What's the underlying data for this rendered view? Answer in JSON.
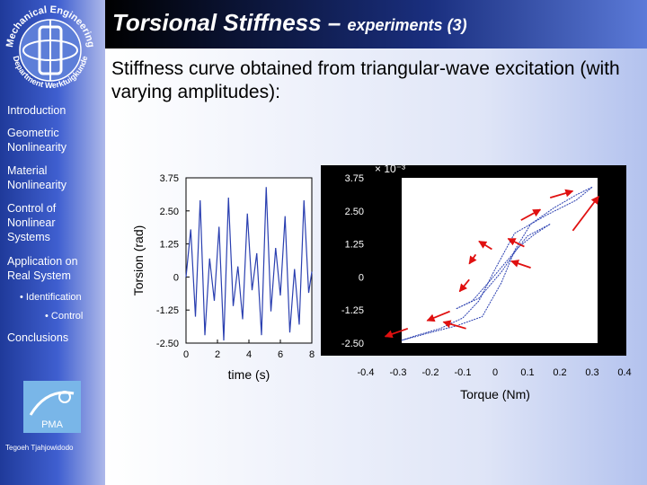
{
  "title": {
    "main": "Torsional Stiffness – ",
    "sub": "experiments (3)"
  },
  "heading": "Stiffness curve obtained from triangular-wave excitation (with varying amplitudes):",
  "logo": {
    "arc_top": "Mechanical Engineering",
    "arc_bottom": "Department Werktuigkunde"
  },
  "sidebar": {
    "items": [
      {
        "label": "Introduction"
      },
      {
        "label": "Geometric\nNonlinearity"
      },
      {
        "label": "Material\nNonlinearity"
      },
      {
        "label": "Control of\nNonlinear\nSystems"
      },
      {
        "label": "Application on\nReal System"
      },
      {
        "label": "• Identification"
      },
      {
        "label": "• Control"
      },
      {
        "label": "Conclusions"
      }
    ],
    "pma_label": "PMA",
    "author": "Tegoeh Tjahjowidodo"
  },
  "colors": {
    "sidebar": "#2f4fc0",
    "arrow": "#e01010",
    "trace": "#2a3fb0"
  },
  "chart_data": [
    {
      "type": "line",
      "xlabel": "time (s)",
      "ylabel": "Torsion (rad)",
      "xlim": [
        0,
        8
      ],
      "ylim": [
        -2.5,
        3.75
      ],
      "x_ticks": [
        "0",
        "2",
        "4",
        "6",
        "8"
      ],
      "y_ticks": [
        "3.75",
        "2.50",
        "1.25",
        "0",
        "-1.25",
        "-2.50"
      ],
      "scale_label": "× 10⁻³",
      "series": [
        {
          "x": [
            0,
            0.3,
            0.6,
            0.9,
            1.2,
            1.5,
            1.8,
            2.1,
            2.4,
            2.7,
            3.0,
            3.3,
            3.6,
            3.9,
            4.2,
            4.5,
            4.8,
            5.1,
            5.4,
            5.7,
            6.0,
            6.3,
            6.6,
            6.9,
            7.2,
            7.5,
            7.8,
            8.0
          ],
          "y": [
            0,
            1.8,
            -1.5,
            2.9,
            -2.2,
            0.7,
            -0.9,
            1.9,
            -2.4,
            3.0,
            -1.1,
            0.4,
            -1.6,
            2.4,
            -0.5,
            0.9,
            -2.2,
            3.4,
            -1.3,
            1.1,
            -0.7,
            2.3,
            -2.1,
            0.3,
            -1.8,
            2.9,
            -0.6,
            0.2
          ]
        }
      ]
    },
    {
      "type": "line",
      "xlabel": "Torque (Nm)",
      "ylabel": "",
      "xlim": [
        -0.4,
        0.4
      ],
      "ylim": [
        -2.5,
        3.75
      ],
      "x_ticks": [
        "-0.4",
        "-0.3",
        "-0.2",
        "-0.1",
        "0",
        "0.1",
        "0.2",
        "0.3",
        "0.4"
      ],
      "y_ticks": [
        "3.75",
        "2.50",
        "1.25",
        "0",
        "-1.25",
        "-2.50"
      ],
      "series": [
        {
          "x": [
            -0.29,
            -0.2,
            -0.12,
            -0.04,
            0.02,
            0.06,
            0.11,
            0.18,
            0.25,
            0.3
          ],
          "y": [
            -2.4,
            -2.1,
            -1.85,
            -1.5,
            -0.2,
            1.0,
            2.0,
            2.6,
            3.1,
            3.4
          ]
        },
        {
          "x": [
            0.3,
            0.25,
            0.16,
            0.06,
            0.0,
            -0.05,
            -0.1,
            -0.17,
            -0.24,
            -0.29
          ],
          "y": [
            3.4,
            2.9,
            2.35,
            1.65,
            0.3,
            -0.9,
            -1.55,
            -1.95,
            -2.2,
            -2.4
          ]
        },
        {
          "x": [
            -0.12,
            -0.05,
            0.02,
            0.07,
            0.12,
            0.17
          ],
          "y": [
            -1.2,
            -0.8,
            0.2,
            1.1,
            1.6,
            2.0
          ]
        },
        {
          "x": [
            0.17,
            0.1,
            0.05,
            -0.02,
            -0.07,
            -0.12
          ],
          "y": [
            2.0,
            1.55,
            0.8,
            -0.2,
            -0.9,
            -1.2
          ]
        }
      ],
      "arrows": [
        {
          "x1": 0.17,
          "y1": 3.0,
          "x2": 0.24,
          "y2": 3.25
        },
        {
          "x1": 0.24,
          "y1": 1.75,
          "x2": 0.32,
          "y2": 3.05
        },
        {
          "x1": 0.08,
          "y1": 2.15,
          "x2": 0.14,
          "y2": 2.55
        },
        {
          "x1": 0.09,
          "y1": 1.15,
          "x2": 0.04,
          "y2": 1.45
        },
        {
          "x1": 0.11,
          "y1": 0.35,
          "x2": 0.05,
          "y2": 0.6
        },
        {
          "x1": -0.01,
          "y1": 1.05,
          "x2": -0.05,
          "y2": 1.35
        },
        {
          "x1": -0.06,
          "y1": 0.85,
          "x2": -0.08,
          "y2": 0.5
        },
        {
          "x1": -0.08,
          "y1": -0.1,
          "x2": -0.11,
          "y2": -0.55
        },
        {
          "x1": -0.14,
          "y1": -1.3,
          "x2": -0.21,
          "y2": -1.65
        },
        {
          "x1": -0.27,
          "y1": -1.95,
          "x2": -0.34,
          "y2": -2.25
        },
        {
          "x1": -0.09,
          "y1": -1.95,
          "x2": -0.16,
          "y2": -1.7
        }
      ]
    }
  ]
}
